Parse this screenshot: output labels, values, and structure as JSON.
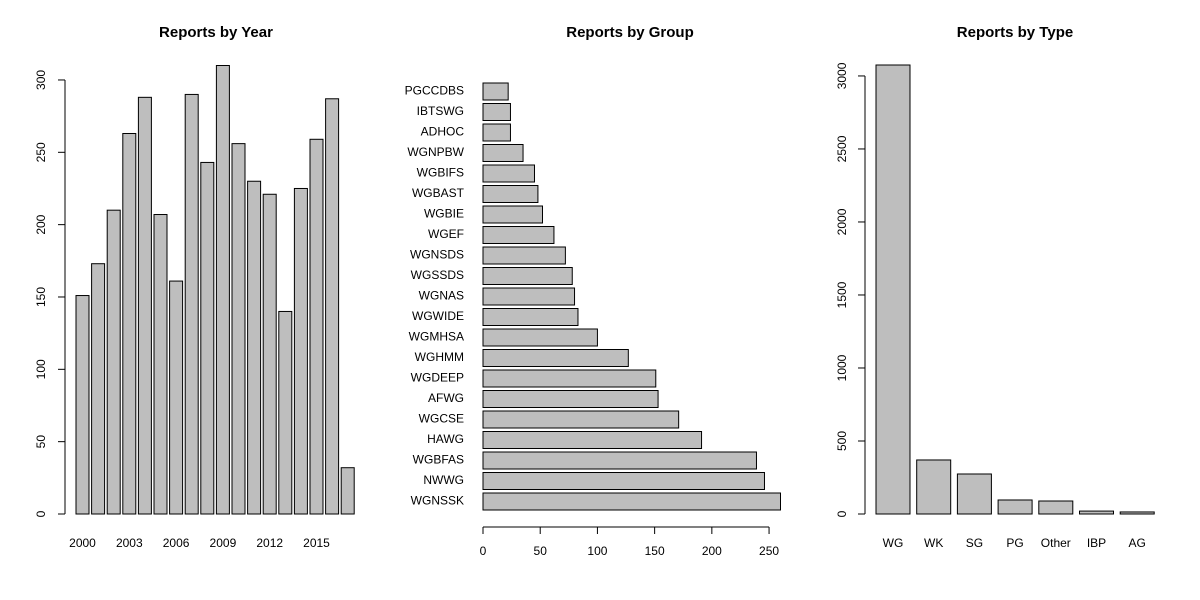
{
  "chart_data": [
    {
      "type": "bar",
      "title": "Reports by Year",
      "orientation": "vertical",
      "color": "#bebebe",
      "categories": [
        "2000",
        null,
        null,
        "2003",
        null,
        null,
        "2006",
        null,
        null,
        "2009",
        null,
        null,
        "2012",
        null,
        null,
        "2015",
        null,
        null
      ],
      "values": [
        151,
        173,
        210,
        263,
        288,
        207,
        161,
        290,
        243,
        310,
        256,
        230,
        221,
        140,
        225,
        259,
        287,
        32
      ],
      "ylim": [
        0,
        310
      ],
      "yticks": [
        0,
        50,
        100,
        150,
        200,
        250,
        300
      ]
    },
    {
      "type": "bar",
      "title": "Reports by Group",
      "orientation": "horizontal",
      "color": "#bebebe",
      "categories": [
        "WGNSSK",
        "NWWG",
        "WGBFAS",
        "HAWG",
        "WGCSE",
        "AFWG",
        "WGDEEP",
        "WGHMM",
        "WGMHSA",
        "WGWIDE",
        "WGNAS",
        "WGSSDS",
        "WGNSDS",
        "WGEF",
        "WGBIE",
        "WGBAST",
        "WGBIFS",
        "WGNPBW",
        "ADHOC",
        "IBTSWG",
        "PGCCDBS"
      ],
      "values": [
        260,
        246,
        239,
        191,
        171,
        153,
        151,
        127,
        100,
        83,
        80,
        78,
        72,
        62,
        52,
        48,
        45,
        35,
        24,
        24,
        22
      ],
      "xlim": [
        0,
        260
      ],
      "xticks": [
        0,
        50,
        100,
        150,
        200,
        250
      ]
    },
    {
      "type": "bar",
      "title": "Reports by Type",
      "orientation": "vertical",
      "color": "#bebebe",
      "categories": [
        "WG",
        "WK",
        "SG",
        "PG",
        "Other",
        "IBP",
        "AG"
      ],
      "values": [
        3075,
        370,
        274,
        96,
        89,
        20,
        14
      ],
      "ylim": [
        0,
        3075
      ],
      "yticks": [
        0,
        500,
        1000,
        1500,
        2000,
        2500,
        3000
      ]
    }
  ]
}
